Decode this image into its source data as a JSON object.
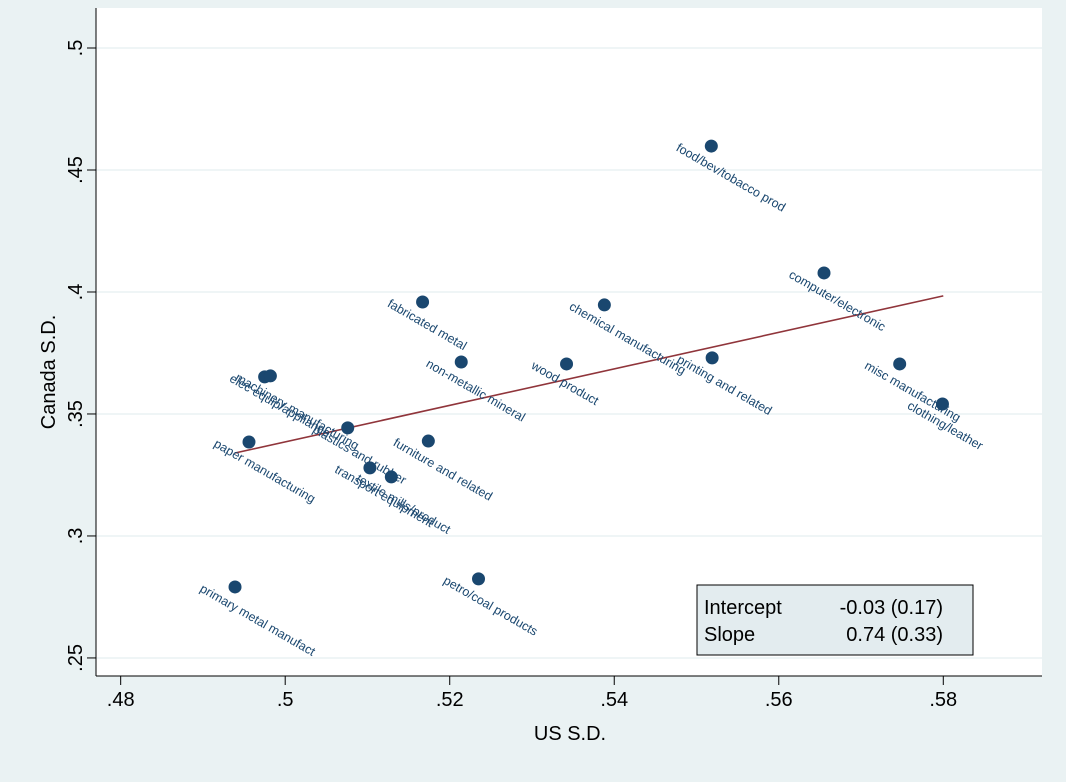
{
  "chart_data": {
    "type": "scatter",
    "x_label": "US S.D.",
    "y_label": "Canada S.D.",
    "xlim": [
      0.477,
      0.592
    ],
    "ylim": [
      0.2426,
      0.5164
    ],
    "xticks": [
      {
        "value": 0.48,
        "label": ".48"
      },
      {
        "value": 0.5,
        "label": ".5"
      },
      {
        "value": 0.52,
        "label": ".52"
      },
      {
        "value": 0.54,
        "label": ".54"
      },
      {
        "value": 0.56,
        "label": ".56"
      },
      {
        "value": 0.58,
        "label": ".58"
      }
    ],
    "yticks": [
      {
        "value": 0.25,
        "label": ".25"
      },
      {
        "value": 0.3,
        "label": ".3"
      },
      {
        "value": 0.35,
        "label": ".35"
      },
      {
        "value": 0.4,
        "label": ".4"
      },
      {
        "value": 0.45,
        "label": ".45"
      },
      {
        "value": 0.5,
        "label": ".5"
      }
    ],
    "grid": true,
    "color": "#1a476f",
    "labels": [
      "primary metal manufact",
      "paper manufacturing",
      "elec equip/appliance",
      "machinery manufacturing",
      "plastics and rubber",
      "transport equipment",
      "textile mills/product",
      "furniture and related",
      "fabricated metal",
      "non-metallic mineral",
      "petro/coal products",
      "wood product",
      "chemical manufacturing",
      "printing and related",
      "food/bev/tobacco prod",
      "computer/electronic",
      "misc manufacturing",
      "clothing/leather"
    ],
    "x": [
      0.4939,
      0.4956,
      0.4975,
      0.4982,
      0.5076,
      0.5103,
      0.5129,
      0.5174,
      0.5167,
      0.5214,
      0.5235,
      0.5342,
      0.5388,
      0.5519,
      0.5518,
      0.5655,
      0.5747,
      0.5799
    ],
    "y": [
      0.2791,
      0.3385,
      0.3652,
      0.3656,
      0.3443,
      0.3279,
      0.3242,
      0.3389,
      0.3959,
      0.3713,
      0.2824,
      0.3705,
      0.3947,
      0.373,
      0.4598,
      0.4078,
      0.3705,
      0.3541
    ],
    "fit": {
      "x": [
        0.4939,
        0.58
      ],
      "y": [
        0.334,
        0.3984
      ],
      "color": "#90353b"
    },
    "stats_box": {
      "rows": [
        [
          "Intercept",
          "-0.03 (0.17)"
        ],
        [
          "Slope",
          "0.74 (0.33)"
        ]
      ]
    }
  }
}
